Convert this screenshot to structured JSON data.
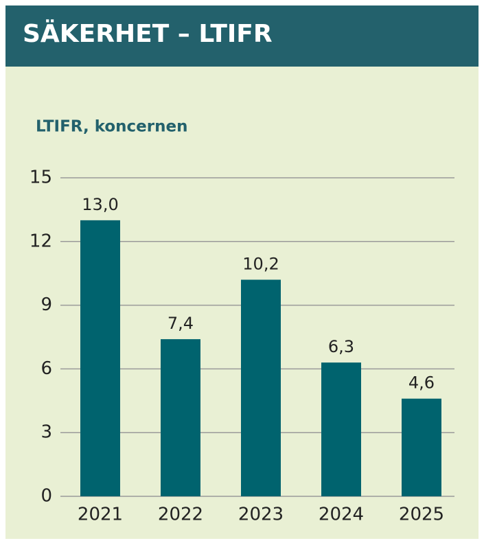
{
  "chart_data": {
    "type": "bar",
    "title": "SÄKERHET – LTIFR",
    "subtitle": "LTIFR, koncernen",
    "categories": [
      "2021",
      "2022",
      "2023",
      "2024",
      "2025"
    ],
    "values": [
      13.0,
      7.4,
      10.2,
      6.3,
      4.6
    ],
    "value_labels": [
      "13,0",
      "7,4",
      "10,2",
      "6,3",
      "4,6"
    ],
    "color": "#00636e",
    "ylim": [
      0,
      15
    ],
    "yticks": [
      0,
      3,
      6,
      9,
      12,
      15
    ],
    "grid": true
  }
}
